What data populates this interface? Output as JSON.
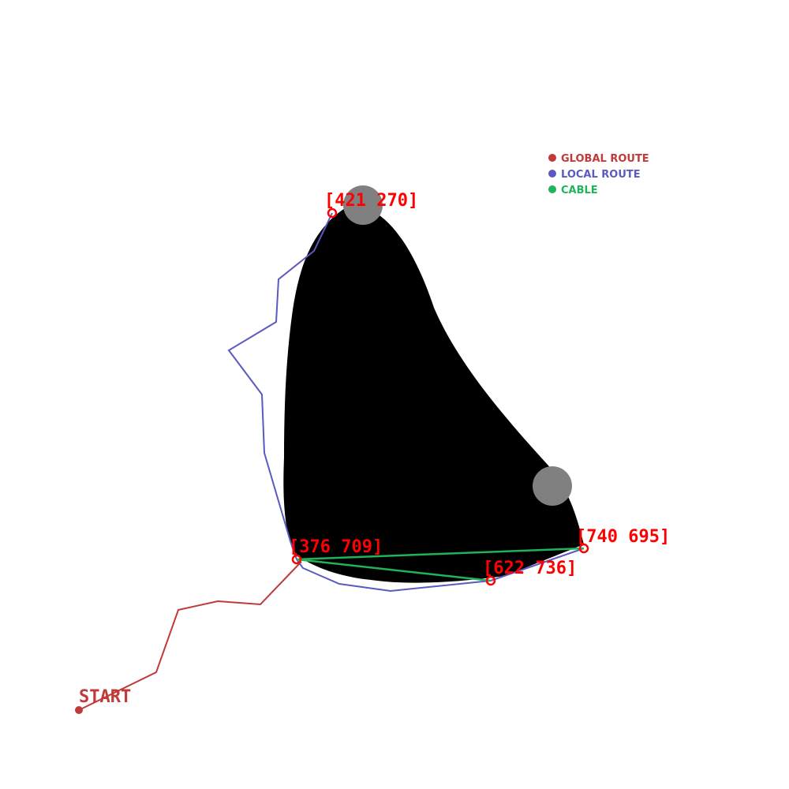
{
  "legend": [
    {
      "label": "GLOBAL ROUTE",
      "color": "#c03a3a"
    },
    {
      "label": "LOCAL ROUTE",
      "color": "#5a5ac0"
    },
    {
      "label": "CABLE",
      "color": "#1fb35a"
    }
  ],
  "start_label": "START",
  "waypoints": [
    {
      "label": "[421 270]"
    },
    {
      "label": "[376 709]"
    },
    {
      "label": "[622 736]"
    },
    {
      "label": "[740 695]"
    }
  ],
  "colors": {
    "obstacle": "#000000",
    "anchor": "#808080",
    "waypoint_label": "#ff0000",
    "global_route": "#c03a3a",
    "local_route": "#5a5ac0",
    "cable": "#1fb35a"
  }
}
